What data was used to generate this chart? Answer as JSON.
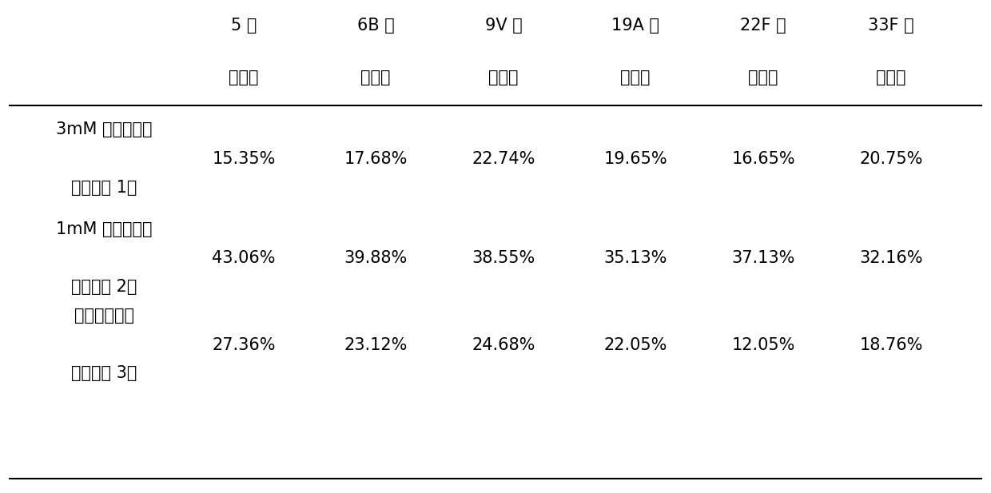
{
  "col_headers_line1": [
    "5 型",
    "6B 型",
    "9V 型",
    "19A 型",
    "22F 型",
    "33F 型"
  ],
  "col_headers_line2": [
    "回收率",
    "回收率",
    "回收率",
    "回收率",
    "回收率",
    "回收率"
  ],
  "row_labels": [
    [
      "3mM 硫酸锌溶液",
      "（实验组 1）"
    ],
    [
      "1mM 硫酸锌溶液",
      "（实验组 2）"
    ],
    [
      "不添加硫酸锌",
      "（实验组 3）"
    ]
  ],
  "data": [
    [
      "15.35%",
      "17.68%",
      "22.74%",
      "19.65%",
      "16.65%",
      "20.75%"
    ],
    [
      "43.06%",
      "39.88%",
      "38.55%",
      "35.13%",
      "37.13%",
      "32.16%"
    ],
    [
      "27.36%",
      "23.12%",
      "24.68%",
      "22.05%",
      "12.05%",
      "18.76%"
    ]
  ],
  "background_color": "#ffffff",
  "text_color": "#000000",
  "font_size": 15,
  "header_font_size": 15
}
